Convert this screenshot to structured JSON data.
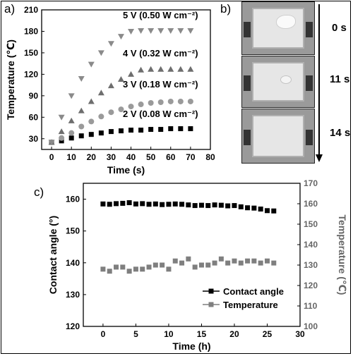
{
  "panels": {
    "a": "a)",
    "b": "b)",
    "c": "c)"
  },
  "chart_data": [
    {
      "type": "scatter",
      "xlabel": "Time (s)",
      "ylabel": "Temperature (℃)",
      "xlim": [
        -5,
        80
      ],
      "ylim": [
        15,
        210
      ],
      "x_ticks": [
        0,
        10,
        20,
        30,
        40,
        50,
        60,
        70,
        80
      ],
      "y_ticks": [
        30,
        60,
        90,
        120,
        150,
        180,
        210
      ],
      "x": [
        0,
        5,
        10,
        15,
        20,
        25,
        30,
        35,
        40,
        45,
        50,
        55,
        60,
        65,
        70
      ],
      "series": [
        {
          "name": "2 V (0.08 W cm⁻²)",
          "marker": "square",
          "color": "#000000",
          "values": [
            25,
            27,
            31,
            34,
            36,
            38,
            40,
            41,
            42,
            42,
            43,
            43,
            44,
            44,
            44
          ]
        },
        {
          "name": "3 V (0.18 W cm⁻²)",
          "marker": "circle",
          "color": "#9a9a9a",
          "values": [
            25,
            31,
            38,
            47,
            54,
            61,
            67,
            71,
            75,
            78,
            80,
            81,
            82,
            82,
            82
          ]
        },
        {
          "name": "4 V (0.32 W cm⁻²)",
          "marker": "triangle-up",
          "color": "#6e6e6e",
          "values": [
            25,
            40,
            55,
            69,
            82,
            94,
            104,
            113,
            120,
            126,
            127,
            127,
            127,
            127,
            127
          ]
        },
        {
          "name": "5 V (0.50 W cm⁻²)",
          "marker": "triangle-down",
          "color": "#8a8a8a",
          "values": [
            25,
            60,
            90,
            114,
            134,
            150,
            163,
            173,
            180,
            181,
            181,
            181,
            181,
            181,
            181
          ]
        }
      ]
    },
    {
      "type": "scatter",
      "xlabel": "Time (h)",
      "ylabel": "Contact angle (°)",
      "y2label": "Temperature (℃)",
      "xlim": [
        -3,
        30
      ],
      "ylim": [
        120,
        165
      ],
      "y2lim": [
        100,
        170
      ],
      "x_ticks": [
        0,
        5,
        10,
        15,
        20,
        25,
        30
      ],
      "y_ticks": [
        120,
        130,
        140,
        150,
        160
      ],
      "y2_ticks": [
        100,
        110,
        120,
        130,
        140,
        150,
        160,
        170
      ],
      "legend": "bottom-right",
      "x": [
        0,
        1,
        2,
        3,
        4,
        5,
        6,
        7,
        8,
        9,
        10,
        11,
        12,
        13,
        14,
        15,
        16,
        17,
        18,
        19,
        20,
        21,
        22,
        23,
        24,
        25,
        26
      ],
      "series": [
        {
          "name": "Contact angle",
          "axis": "left",
          "marker": "square",
          "color": "#000000",
          "values": [
            158.5,
            158.4,
            158.6,
            158.7,
            158.9,
            158.5,
            158.6,
            158.4,
            158.5,
            158.3,
            158.4,
            158.5,
            158.4,
            158.2,
            158.0,
            158.1,
            158.0,
            158.2,
            158.1,
            157.9,
            158.0,
            157.6,
            157.3,
            157.2,
            156.9,
            156.4,
            156.3
          ]
        },
        {
          "name": "Temperature",
          "axis": "right",
          "marker": "square",
          "color": "#7f7f7f",
          "values": [
            128,
            127,
            129,
            129,
            127,
            128,
            128,
            129,
            130,
            130,
            128,
            132,
            131,
            133,
            129,
            130,
            130,
            131,
            133,
            131,
            132,
            131,
            132,
            132,
            131,
            132,
            131
          ]
        }
      ]
    }
  ],
  "photos": {
    "times": [
      "0 s",
      "11 s",
      "14 s"
    ]
  }
}
